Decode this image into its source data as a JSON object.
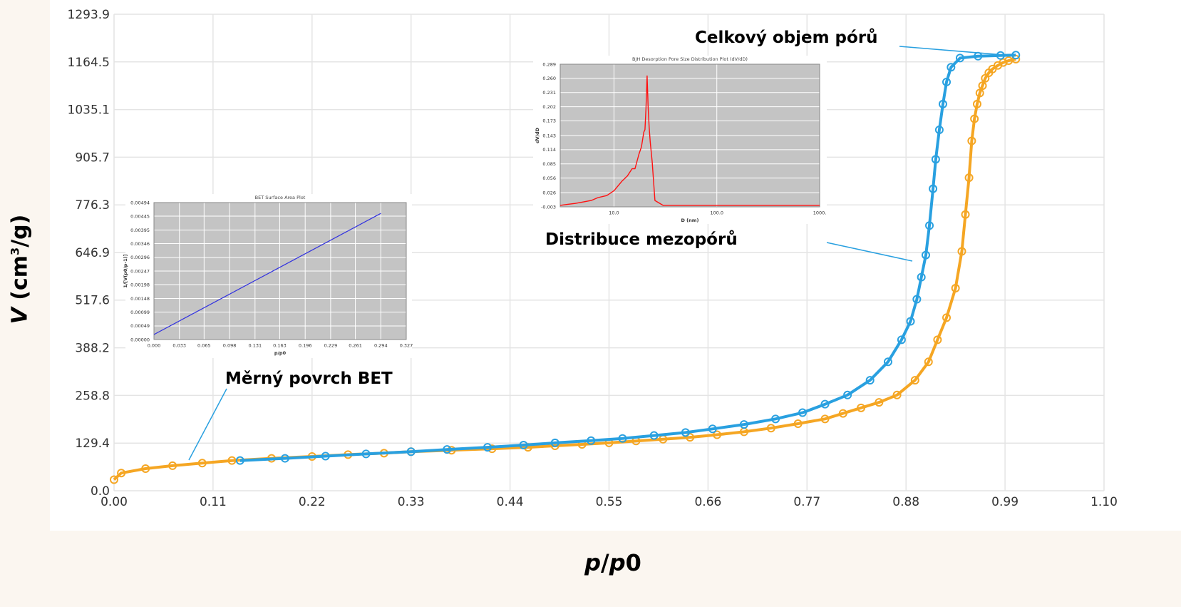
{
  "axes": {
    "xlabel_p": "p",
    "xlabel_slash": "/",
    "xlabel_p0": "p",
    "xlabel_0": "0",
    "ylabel_v": "V",
    "ylabel_unit_pre": "(cm",
    "ylabel_sup": "3",
    "ylabel_unit_post": "/g)"
  },
  "annotations": {
    "total_pore_volume": "Celkový objem pórů",
    "mesopore_distribution": "Distribuce mezopórů",
    "bet_surface": "Měrný povrch BET"
  },
  "colors": {
    "adsorption": "#f5a623",
    "desorption": "#29a0e0",
    "inset_bg": "#c4c4c4",
    "bet_line": "#3030e0",
    "bjh_line": "#ff1010"
  },
  "chart_data": [
    {
      "type": "line",
      "xlabel": "p/p0",
      "ylabel": "V (cm3/g)",
      "xlim": [
        0.0,
        1.1
      ],
      "ylim": [
        0.0,
        1293.9
      ],
      "xticks": [
        "0.00",
        "0.11",
        "0.22",
        "0.33",
        "0.44",
        "0.55",
        "0.66",
        "0.77",
        "0.88",
        "0.99",
        "1.10"
      ],
      "yticks": [
        "0.0",
        "129.4",
        "258.8",
        "388.2",
        "517.6",
        "646.9",
        "776.3",
        "905.7",
        "1035.1",
        "1164.5",
        "1293.9"
      ],
      "grid": true,
      "series": [
        {
          "color": "#f5a623",
          "x": [
            0.0,
            0.008,
            0.035,
            0.065,
            0.098,
            0.131,
            0.175,
            0.22,
            0.26,
            0.3,
            0.33,
            0.375,
            0.42,
            0.46,
            0.49,
            0.52,
            0.55,
            0.58,
            0.61,
            0.64,
            0.67,
            0.7,
            0.73,
            0.76,
            0.79,
            0.81,
            0.83,
            0.85,
            0.87,
            0.89,
            0.905,
            0.915,
            0.925,
            0.935,
            0.942,
            0.946,
            0.95,
            0.953,
            0.956,
            0.959,
            0.962,
            0.965,
            0.968,
            0.972,
            0.976,
            0.982,
            0.988,
            0.994,
            1.002
          ],
          "y": [
            30,
            48,
            60,
            68,
            75,
            82,
            88,
            93,
            98,
            102,
            106,
            110,
            114,
            118,
            122,
            126,
            130,
            135,
            140,
            145,
            152,
            160,
            170,
            182,
            195,
            210,
            225,
            240,
            260,
            300,
            350,
            410,
            470,
            550,
            650,
            750,
            850,
            950,
            1010,
            1050,
            1080,
            1100,
            1120,
            1135,
            1145,
            1155,
            1163,
            1168,
            1172
          ]
        },
        {
          "color": "#29a0e0",
          "x": [
            0.14,
            0.19,
            0.235,
            0.28,
            0.33,
            0.37,
            0.415,
            0.455,
            0.49,
            0.53,
            0.565,
            0.6,
            0.635,
            0.665,
            0.7,
            0.735,
            0.765,
            0.79,
            0.815,
            0.84,
            0.86,
            0.875,
            0.885,
            0.892,
            0.897,
            0.902,
            0.906,
            0.91,
            0.913,
            0.917,
            0.921,
            0.925,
            0.93,
            0.94,
            0.96,
            0.985,
            1.002
          ],
          "y": [
            82,
            88,
            94,
            100,
            106,
            112,
            118,
            124,
            130,
            136,
            142,
            150,
            158,
            168,
            180,
            195,
            212,
            235,
            260,
            300,
            350,
            410,
            460,
            520,
            580,
            640,
            720,
            820,
            900,
            980,
            1050,
            1110,
            1150,
            1175,
            1180,
            1182,
            1183
          ]
        }
      ]
    },
    {
      "type": "line",
      "title": "BET Surface Area Plot",
      "xlabel": "p/p0",
      "ylabel": "1/[V(p0/p-1)]",
      "xlim": [
        0.0,
        0.327
      ],
      "ylim": [
        0.0,
        0.00494
      ],
      "xticks": [
        "0.000",
        "0.033",
        "0.065",
        "0.098",
        "0.131",
        "0.163",
        "0.196",
        "0.229",
        "0.261",
        "0.294",
        "0.327"
      ],
      "yticks": [
        "0.00000",
        "0.00049",
        "0.00099",
        "0.00148",
        "0.00198",
        "0.00247",
        "0.00296",
        "0.00346",
        "0.00395",
        "0.00445",
        "0.00494"
      ],
      "grid": true,
      "series": [
        {
          "color": "#3030e0",
          "x": [
            0.0,
            0.294
          ],
          "y": [
            0.00018,
            0.00455
          ]
        }
      ]
    },
    {
      "type": "line",
      "title": "BJH Desorption Pore Size Distribution Plot (dV/dD)",
      "xlabel": "D (nm)",
      "ylabel": "dV/dD",
      "xscale": "log",
      "xlim": [
        3.0,
        1000.0
      ],
      "ylim": [
        -0.003,
        0.289
      ],
      "xticks": [
        "10.0",
        "100.0",
        "1000."
      ],
      "yticks": [
        "-0.003",
        "0.026",
        "0.056",
        "0.085",
        "0.114",
        "0.143",
        "0.173",
        "0.202",
        "0.231",
        "0.260",
        "0.289"
      ],
      "grid": true,
      "series": [
        {
          "color": "#ff1010",
          "x": [
            3.0,
            3.5,
            4.2,
            5.0,
            6.0,
            7.0,
            8.5,
            10.0,
            12.0,
            13.5,
            15.0,
            16.0,
            17.5,
            18.5,
            19.5,
            20.0,
            20.5,
            21.0,
            21.5,
            22.0,
            22.5,
            23.5,
            25.0,
            30.0,
            50.0,
            100.0,
            1000.0
          ],
          "y": [
            0.0,
            0.002,
            0.004,
            0.007,
            0.01,
            0.016,
            0.02,
            0.03,
            0.05,
            0.06,
            0.075,
            0.075,
            0.105,
            0.12,
            0.15,
            0.155,
            0.2,
            0.265,
            0.2,
            0.16,
            0.13,
            0.09,
            0.01,
            0.0,
            0.0,
            0.0,
            0.0
          ]
        }
      ]
    }
  ]
}
